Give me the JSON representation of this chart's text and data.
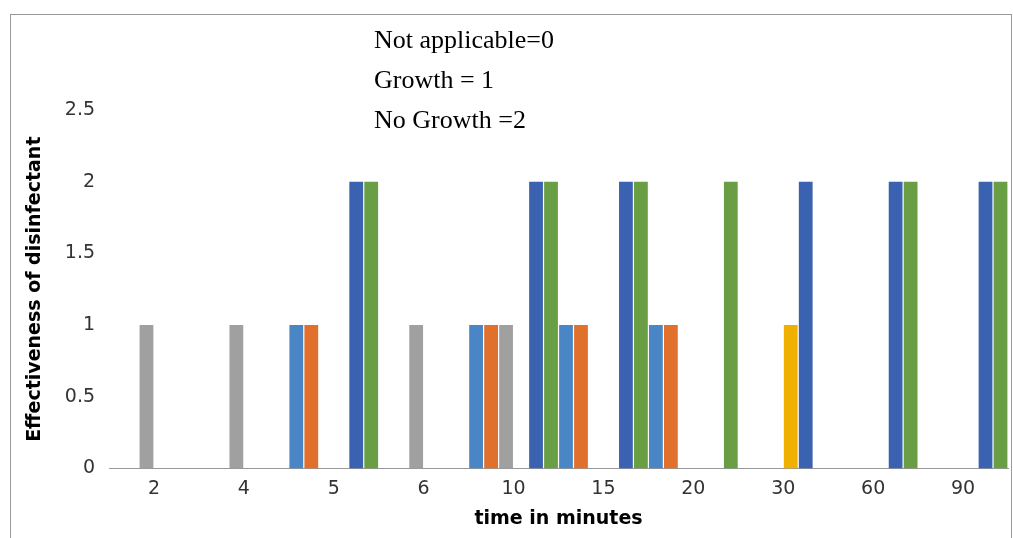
{
  "chart_data": {
    "type": "bar",
    "xlabel": "time in minutes",
    "ylabel": "Effectiveness of disinfectant",
    "annotations": [
      "Not applicable=0",
      "Growth = 1",
      "No Growth =2"
    ],
    "categories": [
      "2",
      "4",
      "5",
      "6",
      "10",
      "15",
      "20",
      "30",
      "60",
      "90"
    ],
    "ylim": [
      0,
      2.5
    ],
    "yticks": [
      0,
      0.5,
      1,
      1.5,
      2,
      2.5
    ],
    "grid": false,
    "legend": false,
    "series": [
      {
        "color": "#4a86c5",
        "values": [
          0,
          0,
          1,
          0,
          1,
          1,
          1,
          0,
          0,
          0
        ]
      },
      {
        "color": "#e0702c",
        "values": [
          0,
          0,
          1,
          0,
          1,
          1,
          1,
          0,
          0,
          0
        ]
      },
      {
        "color": "#a0a0a0",
        "values": [
          1,
          1,
          0,
          1,
          1,
          0,
          0,
          0,
          0,
          0
        ]
      },
      {
        "color": "#f0b000",
        "values": [
          0,
          0,
          0,
          0,
          0,
          0,
          0,
          1,
          0,
          0
        ]
      },
      {
        "color": "#3a62b0",
        "values": [
          0,
          0,
          2,
          0,
          2,
          2,
          0,
          2,
          2,
          2
        ]
      },
      {
        "color": "#6a9e45",
        "values": [
          0,
          0,
          2,
          0,
          2,
          2,
          2,
          0,
          2,
          2
        ]
      }
    ]
  }
}
